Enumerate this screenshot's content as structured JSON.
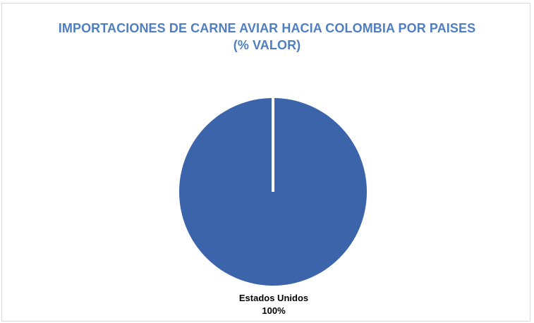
{
  "chart_data": {
    "type": "pie",
    "title": "IMPORTACIONES DE CARNE AVIAR HACIA COLOMBIA POR PAISES",
    "subtitle": "(% VALOR)",
    "categories": [
      "Estados Unidos"
    ],
    "values": [
      100
    ],
    "data_labels": [
      {
        "category": "Estados Unidos",
        "percent": "100%"
      }
    ],
    "colors": {
      "slice": "#3c64aa",
      "title": "#4f7fc0",
      "slice_border": "#ffffff"
    }
  }
}
